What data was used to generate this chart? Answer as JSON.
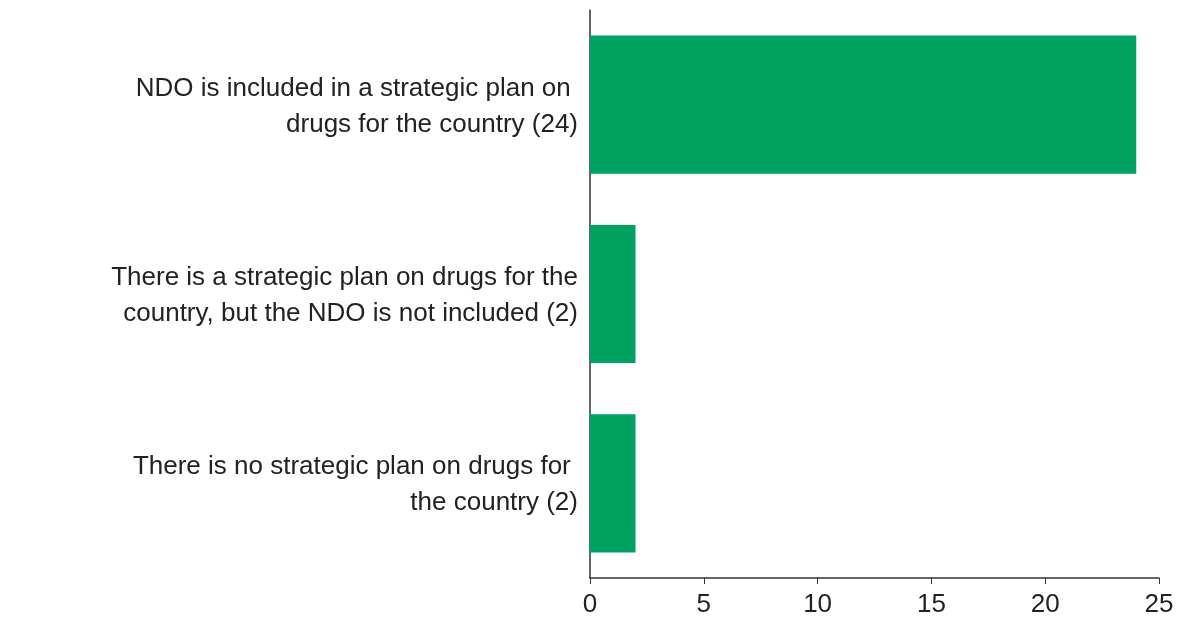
{
  "chart_data": {
    "type": "bar",
    "orientation": "horizontal",
    "categories": [
      "NDO is included in a strategic plan on drugs for the country (24)",
      "There is a strategic plan on drugs for the country, but the NDO is not included (2)",
      "There is no strategic plan on drugs for the country (2)"
    ],
    "values": [
      24,
      2,
      2
    ],
    "color": "#00a261",
    "xlim": [
      0,
      25
    ],
    "xticks": [
      0,
      5,
      10,
      15,
      20,
      25
    ],
    "grid": false
  }
}
